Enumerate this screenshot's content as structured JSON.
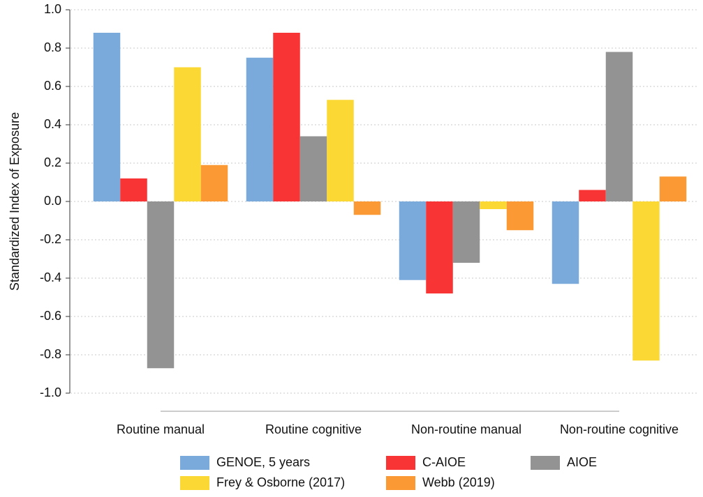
{
  "chart_data": {
    "type": "bar",
    "y_label": "Standardized Index of Exposure",
    "categories": [
      "Routine manual",
      "Routine cognitive",
      "Non-routine manual",
      "Non-routine cognitive"
    ],
    "series": [
      {
        "name": "GENOE, 5 years",
        "color": "#7aaadc",
        "values": [
          0.88,
          0.75,
          -0.41,
          -0.43
        ]
      },
      {
        "name": "C-AIOE",
        "color": "#f93434",
        "values": [
          0.12,
          0.88,
          -0.48,
          0.06
        ]
      },
      {
        "name": "AIOE",
        "color": "#939393",
        "values": [
          -0.87,
          0.34,
          -0.32,
          0.78
        ]
      },
      {
        "name": "Frey & Osborne (2017)",
        "color": "#fcd834",
        "values": [
          0.7,
          0.53,
          -0.04,
          -0.83
        ]
      },
      {
        "name": "Webb (2019)",
        "color": "#fb9a35",
        "values": [
          0.19,
          -0.07,
          -0.15,
          0.13
        ]
      }
    ],
    "ylim": [
      -1,
      1
    ],
    "yticks": [
      {
        "value": -1,
        "label": "-1.0"
      },
      -0.8,
      -0.6,
      -0.4,
      -0.2,
      {
        "value": 0,
        "label": "0.0"
      },
      0.2,
      0.4,
      0.6,
      0.8,
      {
        "value": 1,
        "label": "1.0"
      }
    ],
    "grid": true,
    "legend": "bottom"
  }
}
